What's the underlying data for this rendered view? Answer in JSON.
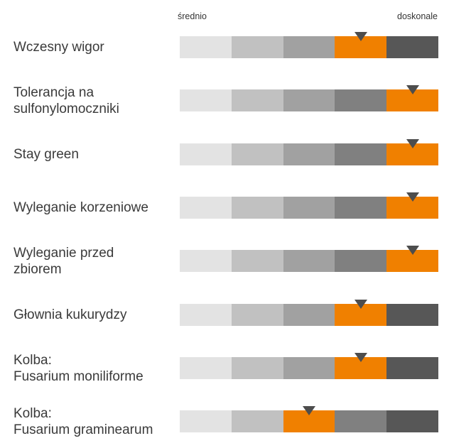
{
  "chart_data": {
    "type": "rating-scale",
    "scale": {
      "min_label": "średnio",
      "max_label": "doskonale",
      "levels": 5,
      "level_colors": [
        "#e3e3e3",
        "#c1c1c1",
        "#a1a1a1",
        "#808080",
        "#575757"
      ],
      "highlight_color": "#f08000",
      "marker_color": "#4d4d4d"
    },
    "traits": [
      {
        "lines": [
          "Wczesny wigor"
        ],
        "rating": 4
      },
      {
        "lines": [
          "Tolerancja na",
          "sulfonylomoczniki"
        ],
        "rating": 5
      },
      {
        "lines": [
          "Stay green"
        ],
        "rating": 5
      },
      {
        "lines": [
          "Wyleganie korzeniowe"
        ],
        "rating": 5
      },
      {
        "lines": [
          "Wyleganie przed",
          "zbiorem"
        ],
        "rating": 5
      },
      {
        "lines": [
          "Głownia kukurydzy"
        ],
        "rating": 4
      },
      {
        "lines": [
          "Kolba:",
          "Fusarium moniliforme"
        ],
        "rating": 4
      },
      {
        "lines": [
          "Kolba:",
          "Fusarium graminearum"
        ],
        "rating": 3
      }
    ]
  }
}
